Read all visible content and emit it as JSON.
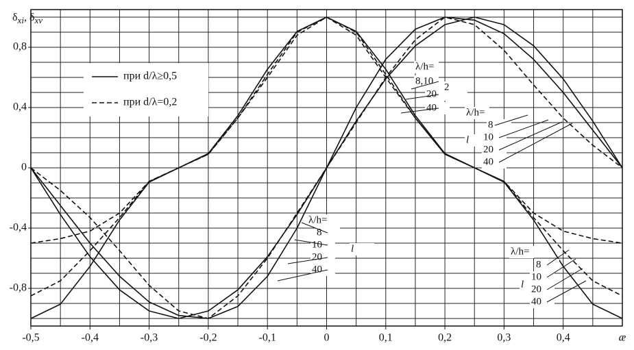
{
  "chart_data": {
    "type": "line",
    "ylabel": [
      "δ",
      "xi",
      ", δ",
      "xv"
    ],
    "xlabel": "æ",
    "x": [
      -0.5,
      -0.45,
      -0.4,
      -0.35,
      -0.3,
      -0.25,
      -0.2,
      -0.15,
      -0.1,
      -0.05,
      0,
      0.05,
      0.1,
      0.15,
      0.2,
      0.25,
      0.3,
      0.35,
      0.4,
      0.45,
      0.5
    ],
    "xlim": [
      -0.5,
      0.5
    ],
    "ylim": [
      -1.05,
      1.05
    ],
    "xticks": [
      {
        "value": -0.5,
        "label": "-0,5"
      },
      {
        "value": -0.4,
        "label": "-0,4"
      },
      {
        "value": -0.3,
        "label": "-0,3"
      },
      {
        "value": -0.2,
        "label": "-0,2"
      },
      {
        "value": -0.1,
        "label": "-0,1"
      },
      0,
      {
        "value": 0.1,
        "label": "0,1"
      },
      {
        "value": 0.2,
        "label": "0,2"
      },
      {
        "value": 0.3,
        "label": "0,3"
      },
      {
        "value": 0.4,
        "label": "0,4"
      }
    ],
    "yticks": [
      {
        "value": 0.8,
        "label": "0,8"
      },
      {
        "value": 0.4,
        "label": "0,4"
      },
      0,
      {
        "value": -0.4,
        "label": "-0,4"
      },
      {
        "value": -0.8,
        "label": "-0,8"
      }
    ],
    "x_minor_ticks": [
      -0.5,
      -0.45,
      -0.4,
      -0.35,
      -0.3,
      -0.25,
      -0.2,
      -0.15,
      -0.1,
      -0.05,
      0,
      0.05,
      0.1,
      0.15,
      0.2,
      0.25,
      0.3,
      0.35,
      0.4,
      0.45,
      0.5
    ],
    "y_minor_ticks": [
      -1,
      -0.9,
      -0.8,
      -0.7,
      -0.6,
      -0.5,
      -0.4,
      -0.3,
      -0.2,
      -0.1,
      0,
      0.1,
      0.2,
      0.3,
      0.4,
      0.5,
      0.6,
      0.7,
      0.8,
      0.9,
      1
    ],
    "grid": true,
    "legend": [
      {
        "label": "при d/λ≥0,5",
        "style": "solid"
      },
      {
        "label": "при d/λ=0,2",
        "style": "dashed"
      }
    ],
    "series": [
      {
        "style": "solid",
        "color": "#111",
        "values": [
          -1,
          -0.905,
          -0.654,
          -0.346,
          -0.095,
          0,
          0.095,
          0.346,
          0.654,
          0.905,
          1,
          0.905,
          0.654,
          0.346,
          0.095,
          0,
          -0.095,
          -0.346,
          -0.654,
          -0.905,
          -1
        ]
      },
      {
        "style": "dashed",
        "color": "#111",
        "values": [
          -0.5,
          -0.47,
          -0.42,
          -0.3,
          -0.09,
          0,
          0.09,
          0.33,
          0.62,
          0.9,
          1,
          0.9,
          0.62,
          0.33,
          0.09,
          0,
          -0.09,
          -0.3,
          -0.42,
          -0.47,
          -0.5
        ]
      },
      {
        "style": "dashed",
        "color": "#111",
        "values": [
          -0.85,
          -0.75,
          -0.55,
          -0.33,
          -0.09,
          0,
          0.09,
          0.33,
          0.6,
          0.88,
          1,
          0.88,
          0.6,
          0.33,
          0.09,
          0,
          -0.09,
          -0.33,
          -0.55,
          -0.75,
          -0.85
        ]
      },
      {
        "style": "solid",
        "color": "#111",
        "values": [
          0,
          -0.25,
          -0.5,
          -0.72,
          -0.89,
          -0.98,
          -1,
          -0.92,
          -0.72,
          -0.4,
          0,
          0.4,
          0.72,
          0.92,
          1,
          0.98,
          0.89,
          0.72,
          0.5,
          0.25,
          0
        ]
      },
      {
        "style": "solid",
        "color": "#111",
        "values": [
          0,
          -0.31,
          -0.59,
          -0.81,
          -0.95,
          -1,
          -0.95,
          -0.81,
          -0.59,
          -0.31,
          0,
          0.31,
          0.59,
          0.81,
          0.95,
          1,
          0.95,
          0.81,
          0.59,
          0.31,
          0
        ]
      },
      {
        "style": "dashed",
        "color": "#111",
        "values": [
          0,
          -0.15,
          -0.33,
          -0.55,
          -0.78,
          -0.95,
          -1,
          -0.85,
          -0.6,
          -0.3,
          0,
          0.3,
          0.6,
          0.85,
          1,
          0.95,
          0.78,
          0.55,
          0.33,
          0.15,
          0
        ]
      }
    ],
    "annotations": [
      "λ/h=",
      "8,10",
      "20",
      "40",
      "2",
      "λ/h=",
      "8",
      "10",
      "20",
      "40",
      "l",
      "λ/h=",
      "8",
      "10",
      "20",
      "40",
      "l",
      "λ/h=",
      "8",
      "10",
      "20",
      "40",
      "l"
    ]
  }
}
